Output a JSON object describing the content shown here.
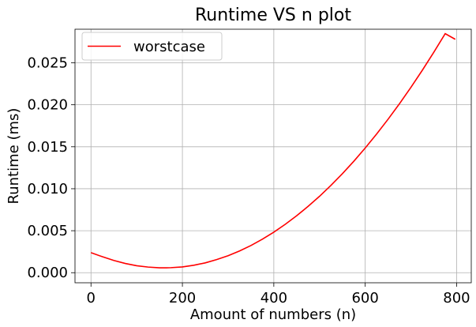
{
  "chart_data": {
    "type": "line",
    "title": "Runtime VS n plot",
    "xlabel": "Amount of numbers (n)",
    "ylabel": "Runtime (ms)",
    "xlim": [
      -35,
      832
    ],
    "ylim": [
      -0.0012,
      0.029
    ],
    "x_ticks": [
      0,
      200,
      400,
      600,
      800
    ],
    "x_tick_labels": [
      "0",
      "200",
      "400",
      "600",
      "800"
    ],
    "y_ticks": [
      0.0,
      0.005,
      0.01,
      0.015,
      0.02,
      0.025
    ],
    "y_tick_labels": [
      "0.000",
      "0.005",
      "0.010",
      "0.015",
      "0.020",
      "0.025"
    ],
    "grid": true,
    "legend_position": "upper-left",
    "series": [
      {
        "name": "worstcase",
        "color": "#ff0000",
        "x": [
          0,
          25,
          50,
          75,
          100,
          125,
          150,
          165,
          175,
          200,
          225,
          250,
          275,
          300,
          325,
          350,
          375,
          400,
          425,
          450,
          475,
          500,
          525,
          550,
          575,
          600,
          625,
          650,
          675,
          700,
          725,
          750,
          775,
          797
        ],
        "y": [
          0.00239,
          0.0019,
          0.00146,
          0.0011,
          0.00083,
          0.00067,
          0.00058,
          0.00058,
          0.0006,
          0.00069,
          0.00089,
          0.00117,
          0.00156,
          0.00202,
          0.00259,
          0.00324,
          0.00399,
          0.00483,
          0.00576,
          0.00678,
          0.0079,
          0.0091,
          0.0104,
          0.01179,
          0.01327,
          0.01485,
          0.01652,
          0.01828,
          0.02013,
          0.02208,
          0.02412,
          0.02625,
          0.02847,
          0.0278
        ]
      }
    ]
  }
}
